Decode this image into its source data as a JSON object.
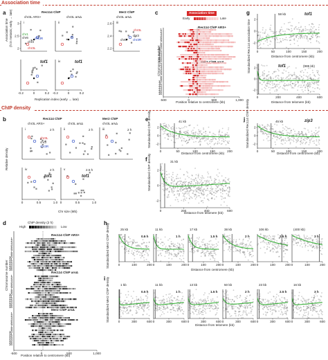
{
  "sections": {
    "assoc": "Association time",
    "chip": "ChIP density"
  },
  "panels": {
    "a": "a",
    "b": "b",
    "c": "c",
    "d": "d",
    "e": "e",
    "f": "f",
    "g": "g",
    "h": "h",
    "i": "i",
    "j": "j"
  },
  "a": {
    "rec114": "Rec114 ChIP",
    "arsplus": "chr3L ARS+",
    "arsdel": "chr3L arsΔ",
    "mer2": "Mer2 ChIP",
    "mer2_arsdel": "chr3L arsΔ",
    "i": "i",
    "ii": "ii",
    "iii": "iii",
    "iv": "iv",
    "tof1": "tof1",
    "ylabel": "Association time",
    "ylabel2": "(h in meiosis; early → late)",
    "xlabel": "Replication index (early → late)",
    "chr1": "chr1",
    "chr6": "chr6",
    "chr3": "chr3",
    "chr3R": "chr3R",
    "chr3L": "chr3L",
    "yticks": [
      "3",
      "2.5",
      "2"
    ],
    "yticks_iii": [
      "2.6",
      "2.4",
      "2.2"
    ],
    "xticks": [
      "-0.2",
      "0",
      "0.2"
    ]
  },
  "b": {
    "rec114": "Rec114 ChIP",
    "arsplus": "chr3L ARS+",
    "arsdel": "chr3L arsΔ",
    "mer2": "Mer2 ChIP",
    "mer2_arsdel": "chr3L arsΔ",
    "i": "i",
    "ii": "ii",
    "iii": "iii",
    "iv": "iv",
    "v": "v",
    "time2": "2 h",
    "time25": "2.5 h",
    "tof1": "tof1",
    "chr3L": "chr3L",
    "chr3": "chr3",
    "chr3R": "chr3R",
    "ylabel": "Relative density",
    "xlabel": "Chr size (Mb)",
    "xticks": [
      "0",
      "0.5",
      "1.0"
    ]
  },
  "c": {
    "legend_title": "Association time",
    "early": "Early",
    "late": "Late",
    "rec114": "Rec114 ChIP ARS+",
    "mer2": "Mer2 ChIP arsΔ",
    "ylabel": "Chromosome number",
    "xlabel": "Position relative to centromere (kb)",
    "xticks": [
      "-500",
      "0",
      "500",
      "1,000"
    ],
    "colors": {
      "early": "#d62828",
      "late": "#f4b6b6"
    }
  },
  "d": {
    "legend_title": "ChIP density (2 h)",
    "high": "High",
    "low": "Low",
    "rec114a": "Rec114 ChIP ARS+",
    "rec114b": "Rec114 ChIP arsΔ",
    "mer2": "Mer2 ChIP arsΔ",
    "ylabel": "Chromosome number",
    "xlabel": "Position relative to centromere (kb)",
    "xticks": [
      "-500",
      "0",
      "500",
      "1,000"
    ]
  },
  "e": {
    "kb": "41 kb",
    "ylabel": "Standardized ChIP density",
    "xlabel": "Distance from centromere (kb)",
    "xticks": [
      "0",
      "50",
      "100",
      "150",
      "200"
    ],
    "yticks": [
      "2",
      "0",
      "-2"
    ]
  },
  "f": {
    "kb": "31 kb",
    "ylabel": "Standardized ChIP density",
    "xlabel": "Distance from telomere (kb)",
    "xticks": [
      "0",
      "200",
      "400",
      "600"
    ],
    "yticks": [
      "2",
      "0",
      "-2"
    ]
  },
  "g": {
    "kb": "58 kb",
    "tof1": "tof1",
    "tof1b": "tof1",
    "kb2": "(985 kb)",
    "ylabel": "Standardized Rec114 association time",
    "xlabel": "Distance from centromere (kb)",
    "xlabel2": "Distance from telomere (kb)",
    "xticks": [
      "0",
      "50",
      "100",
      "150",
      "200"
    ],
    "xticks2": [
      "0",
      "200",
      "400",
      "600"
    ],
    "yticks": [
      "2",
      "0",
      "-2"
    ]
  },
  "j": {
    "kb": "45 kb",
    "gene": "zip3",
    "ylabel": "Standardized Rec114 ChIP density",
    "xlabel": "Distance from centromere (kb)",
    "xticks": [
      "0",
      "50",
      "100",
      "150",
      "200"
    ],
    "yticks": [
      "2",
      "0",
      "-2"
    ]
  },
  "h": {
    "ylabel": "Standardized Mer2 ChIP density",
    "xlabel": "Distance from centromere (kb)",
    "xticks": [
      "0",
      "100",
      "200"
    ],
    "panels": [
      {
        "kb": "25 kb",
        "time": "0.5 h"
      },
      {
        "kb": "11 kb",
        "time": "1 h"
      },
      {
        "kb": "17 kb",
        "time": "1.5 h"
      },
      {
        "kb": "38 kb",
        "time": "2 h"
      },
      {
        "kb": "106 kb",
        "time": "2.5 h"
      },
      {
        "kb": "(400 kb)",
        "time": "3 h"
      }
    ]
  },
  "i": {
    "ylabel": "Standardized Mer2 ChIP density",
    "xlabel": "Distance from telomere (kb)",
    "xticks": [
      "0",
      "300",
      "600"
    ],
    "panels": [
      {
        "kb": "1 kb",
        "time": "0.5 h"
      },
      {
        "kb": "11 kb",
        "time": "1 h"
      },
      {
        "kb": "13 kb",
        "time": "1.5 h"
      },
      {
        "kb": "50 kb",
        "time": "2 h"
      },
      {
        "kb": "23 kb",
        "time": "2.5 h"
      },
      {
        "kb": "16 kb",
        "time": "3 h"
      }
    ]
  }
}
